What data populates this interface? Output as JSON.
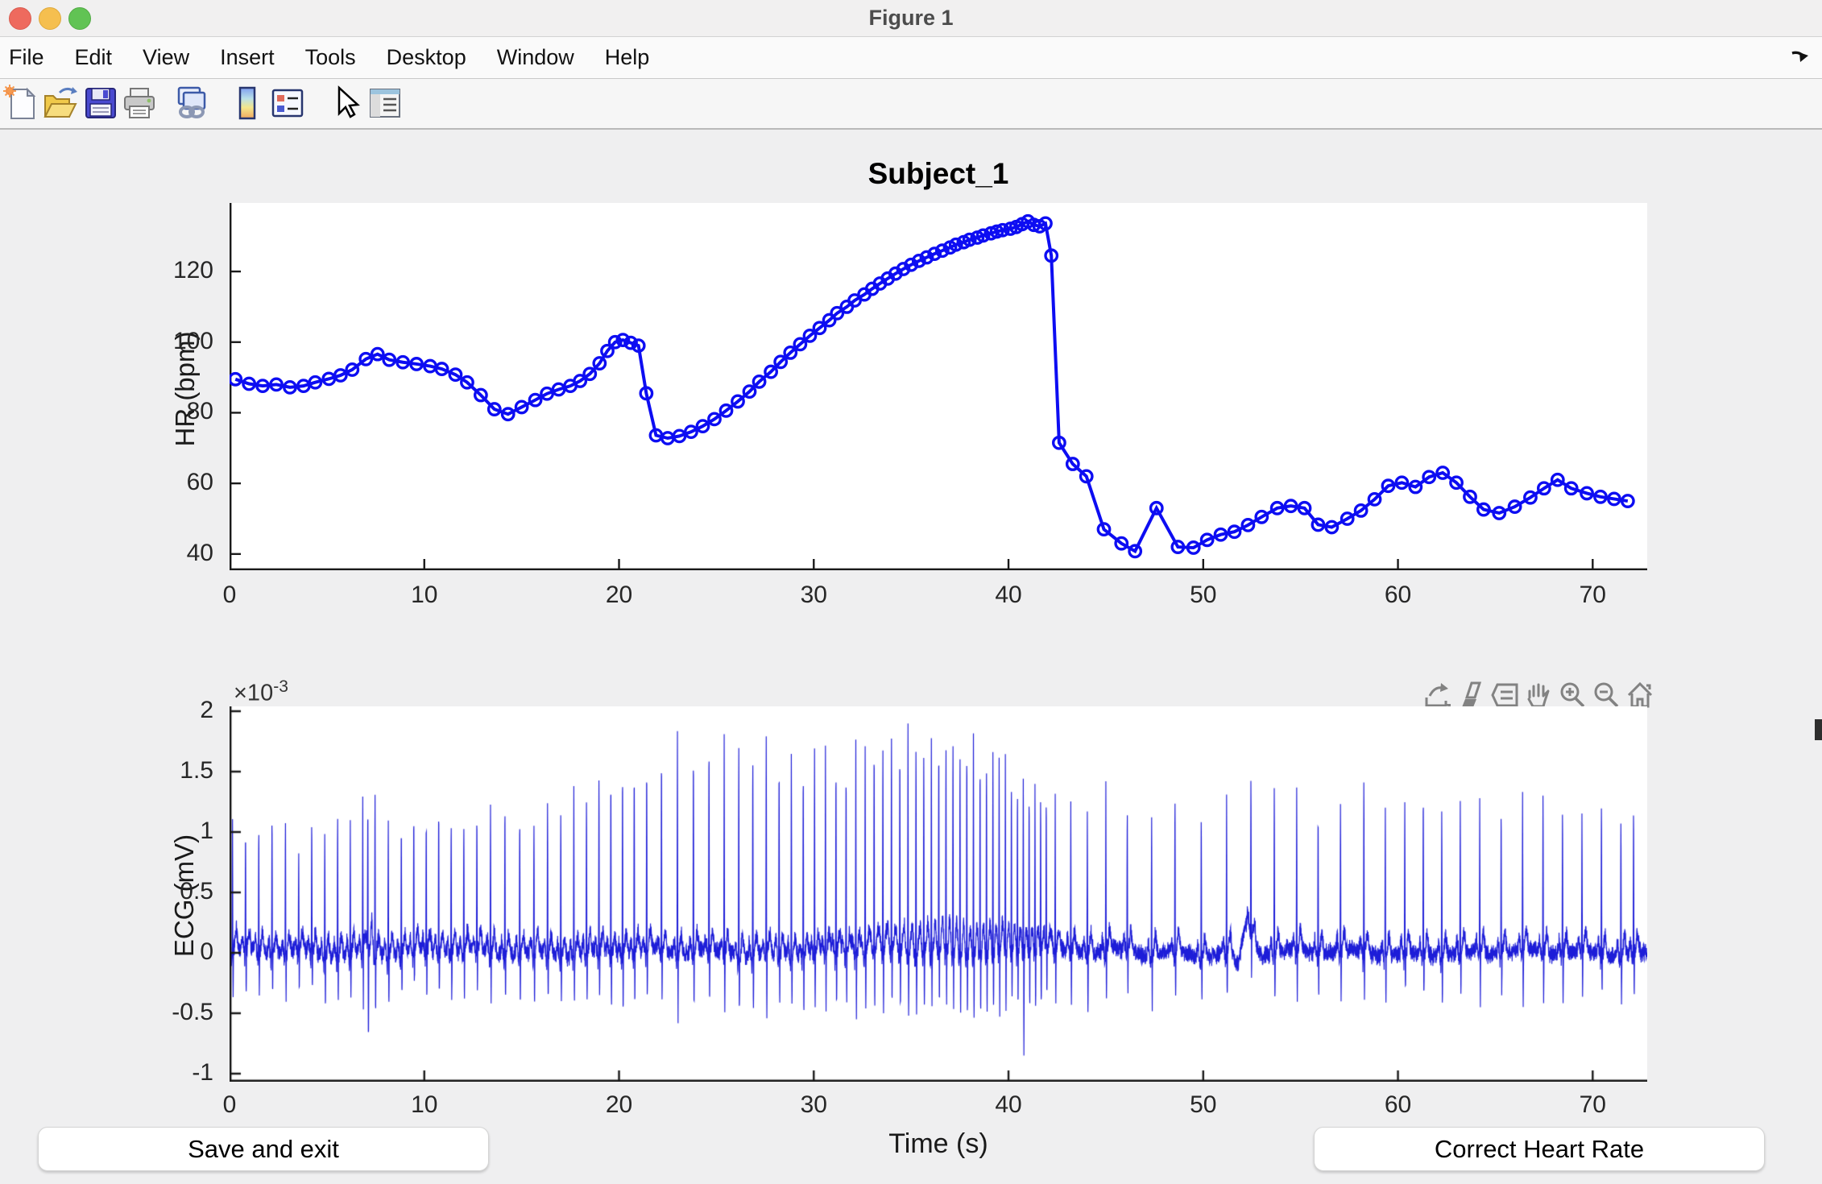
{
  "window": {
    "title": "Figure 1"
  },
  "menu_bar": {
    "items": [
      "File",
      "Edit",
      "View",
      "Insert",
      "Tools",
      "Desktop",
      "Window",
      "Help"
    ]
  },
  "toolbar": {
    "icons": [
      "new-figure",
      "open-file",
      "save-figure",
      "print-figure",
      "link-plot",
      "insert-colorbar",
      "insert-legend",
      "edit-plot",
      "property-inspector"
    ]
  },
  "axes_toolbar": {
    "icons": [
      "export",
      "brush-data",
      "datatips",
      "pan",
      "zoom-in",
      "zoom-out",
      "restore-view"
    ]
  },
  "buttons": {
    "save_and_exit": "Save and exit",
    "correct_heart_rate": "Correct Heart Rate"
  },
  "exponent_label": {
    "base": "×10",
    "exponent": "-3"
  },
  "accent_colors": {
    "plot_blue": "#0d0df2",
    "traffic_red": "#ee6a5e",
    "traffic_yellow": "#f5bf4f",
    "traffic_green": "#61c354"
  },
  "chart_data": [
    {
      "type": "line",
      "title": "Subject_1",
      "xlabel": "",
      "ylabel": "HR (bpm)",
      "marker": "circle",
      "color": "#0d0df2",
      "xlim": [
        0,
        72.8
      ],
      "ylim": [
        35.4,
        139.4
      ],
      "xticks": [
        0,
        10,
        20,
        30,
        40,
        50,
        60,
        70
      ],
      "yticks": [
        40,
        60,
        80,
        100,
        120
      ],
      "x": [
        0.3,
        1.0,
        1.7,
        2.4,
        3.1,
        3.8,
        4.4,
        5.1,
        5.7,
        6.3,
        7.0,
        7.6,
        8.2,
        8.9,
        9.6,
        10.3,
        10.9,
        11.6,
        12.2,
        12.9,
        13.6,
        14.3,
        15.0,
        15.7,
        16.3,
        16.9,
        17.5,
        18.0,
        18.5,
        19.0,
        19.4,
        19.8,
        20.2,
        20.6,
        21.0,
        21.4,
        21.9,
        22.5,
        23.1,
        23.7,
        24.3,
        24.9,
        25.5,
        26.1,
        26.7,
        27.2,
        27.8,
        28.3,
        28.8,
        29.3,
        29.8,
        30.3,
        30.8,
        31.2,
        31.7,
        32.1,
        32.6,
        33.0,
        33.4,
        33.8,
        34.2,
        34.6,
        35.0,
        35.4,
        35.8,
        36.2,
        36.6,
        37.0,
        37.3,
        37.7,
        38.0,
        38.4,
        38.7,
        39.1,
        39.4,
        39.7,
        40.1,
        40.4,
        40.7,
        41.0,
        41.3,
        41.6,
        41.9,
        42.2,
        42.6,
        43.3,
        44.0,
        44.9,
        45.8,
        46.5,
        47.6,
        48.7,
        49.5,
        50.2,
        50.9,
        51.6,
        52.3,
        53.0,
        53.8,
        54.5,
        55.2,
        55.9,
        56.6,
        57.4,
        58.1,
        58.8,
        59.5,
        60.2,
        60.9,
        61.6,
        62.3,
        63.0,
        63.7,
        64.4,
        65.2,
        66.0,
        66.8,
        67.5,
        68.2,
        68.9,
        69.7,
        70.4,
        71.1,
        71.8
      ],
      "y": [
        89.5,
        88.2,
        87.6,
        88.0,
        87.2,
        87.6,
        88.6,
        89.6,
        90.6,
        92.2,
        95.2,
        96.6,
        95.0,
        94.3,
        93.8,
        93.2,
        92.4,
        90.8,
        88.6,
        85.0,
        81.0,
        79.6,
        81.6,
        83.6,
        85.4,
        86.6,
        87.6,
        89.0,
        91.0,
        94.0,
        97.5,
        100.0,
        100.6,
        99.8,
        99.0,
        85.5,
        73.6,
        72.8,
        73.4,
        74.6,
        76.2,
        78.2,
        80.6,
        83.2,
        86.0,
        88.8,
        91.6,
        94.4,
        97.0,
        99.4,
        101.8,
        104.0,
        106.2,
        108.2,
        110.0,
        111.8,
        113.5,
        115.1,
        116.6,
        118.0,
        119.4,
        120.7,
        121.9,
        123.0,
        124.0,
        125.0,
        125.9,
        126.8,
        127.6,
        128.3,
        129.0,
        129.6,
        130.2,
        130.8,
        131.3,
        131.7,
        132.1,
        132.6,
        133.4,
        134.2,
        133.2,
        132.8,
        133.6,
        124.5,
        71.5,
        65.5,
        62.0,
        47.0,
        43.0,
        40.8,
        53.0,
        42.0,
        41.8,
        44.0,
        45.5,
        46.3,
        48.2,
        50.5,
        53.0,
        53.6,
        53.0,
        48.3,
        47.6,
        50.0,
        52.3,
        55.5,
        59.3,
        60.2,
        59.0,
        61.8,
        63.0,
        60.2,
        56.2,
        52.6,
        51.6,
        53.4,
        56.0,
        58.6,
        61.0,
        58.6,
        57.2,
        56.2,
        55.6,
        55.0
      ]
    },
    {
      "type": "line",
      "title": "",
      "xlabel": "Time (s)",
      "ylabel": "ECG (mV)",
      "y_unit_multiplier": "1e-3",
      "color": "#1d1dd8",
      "xlim": [
        0,
        72.8
      ],
      "ylim": [
        -1.067,
        2.04
      ],
      "xticks": [
        0,
        10,
        20,
        30,
        40,
        50,
        60,
        70
      ],
      "yticks": [
        -1,
        -0.5,
        0,
        0.5,
        1,
        1.5,
        2
      ],
      "baseline_noise_amplitude": 0.08,
      "baseline_wander_bump": {
        "t": 52.3,
        "amp": 0.25
      },
      "r_peaks": [
        [
          0.15,
          1.18,
          -0.42
        ],
        [
          0.82,
          1.06,
          -0.38
        ],
        [
          1.5,
          1.12,
          -0.4
        ],
        [
          2.18,
          1.25,
          -0.36
        ],
        [
          2.87,
          1.18,
          -0.42
        ],
        [
          3.55,
          0.92,
          -0.35
        ],
        [
          4.22,
          1.22,
          -0.4
        ],
        [
          4.89,
          1.1,
          -0.44
        ],
        [
          5.55,
          1.3,
          -0.38
        ],
        [
          6.2,
          1.15,
          -0.4
        ],
        [
          6.84,
          1.24,
          -0.42
        ],
        [
          7.1,
          1.32,
          -0.85
        ],
        [
          7.47,
          1.38,
          -0.5
        ],
        [
          8.15,
          1.22,
          -0.4
        ],
        [
          8.82,
          1.12,
          -0.44
        ],
        [
          9.46,
          1.28,
          -0.38
        ],
        [
          10.1,
          1.18,
          -0.42
        ],
        [
          10.74,
          1.32,
          -0.4
        ],
        [
          11.38,
          1.22,
          -0.44
        ],
        [
          12.03,
          1.15,
          -0.4
        ],
        [
          12.7,
          1.28,
          -0.38
        ],
        [
          13.4,
          1.2,
          -0.42
        ],
        [
          14.14,
          1.34,
          -0.4
        ],
        [
          14.9,
          1.26,
          -0.44
        ],
        [
          15.63,
          1.18,
          -0.4
        ],
        [
          16.33,
          1.3,
          -0.42
        ],
        [
          17.01,
          1.24,
          -0.38
        ],
        [
          17.68,
          1.35,
          -0.44
        ],
        [
          18.33,
          1.42,
          -0.42
        ],
        [
          18.97,
          1.5,
          -0.46
        ],
        [
          19.58,
          1.58,
          -0.44
        ],
        [
          20.18,
          1.66,
          -0.48
        ],
        [
          20.78,
          1.72,
          -0.46
        ],
        [
          21.42,
          1.76,
          -0.5
        ],
        [
          22.18,
          1.8,
          -0.48
        ],
        [
          23.0,
          1.84,
          -0.52
        ],
        [
          23.82,
          1.82,
          -0.5
        ],
        [
          24.62,
          1.85,
          -0.52
        ],
        [
          25.4,
          1.8,
          -0.5
        ],
        [
          26.15,
          1.83,
          -0.52
        ],
        [
          26.87,
          1.78,
          -0.48
        ],
        [
          27.56,
          1.84,
          -0.52
        ],
        [
          28.22,
          1.8,
          -0.5
        ],
        [
          28.85,
          1.76,
          -0.48
        ],
        [
          29.46,
          1.7,
          -0.5
        ],
        [
          30.04,
          1.74,
          -0.48
        ],
        [
          30.6,
          1.68,
          -0.5
        ],
        [
          31.14,
          1.72,
          -0.48
        ],
        [
          31.66,
          1.66,
          -0.46
        ],
        [
          32.16,
          1.7,
          -0.5
        ],
        [
          32.64,
          1.74,
          -0.48
        ],
        [
          33.1,
          1.78,
          -0.5
        ],
        [
          33.55,
          1.82,
          -0.52
        ],
        [
          33.99,
          1.85,
          -0.5
        ],
        [
          34.42,
          1.8,
          -0.52
        ],
        [
          34.84,
          1.84,
          -0.5
        ],
        [
          35.25,
          1.86,
          -0.52
        ],
        [
          35.65,
          1.82,
          -0.5
        ],
        [
          36.04,
          1.78,
          -0.48
        ],
        [
          36.42,
          1.84,
          -0.52
        ],
        [
          36.79,
          1.8,
          -0.5
        ],
        [
          37.15,
          1.86,
          -0.52
        ],
        [
          37.51,
          1.83,
          -0.5
        ],
        [
          37.86,
          1.86,
          -0.48
        ],
        [
          38.2,
          1.8,
          -0.52
        ],
        [
          38.54,
          1.76,
          -0.5
        ],
        [
          38.87,
          1.72,
          -0.48
        ],
        [
          39.2,
          1.68,
          -0.5
        ],
        [
          39.52,
          1.62,
          -0.48
        ],
        [
          39.84,
          1.56,
          -0.46
        ],
        [
          40.15,
          1.5,
          -0.44
        ],
        [
          40.46,
          1.46,
          -0.48
        ],
        [
          40.76,
          1.42,
          -0.82
        ],
        [
          41.06,
          1.45,
          -0.46
        ],
        [
          41.36,
          1.4,
          -0.44
        ],
        [
          41.65,
          1.38,
          -0.42
        ],
        [
          41.94,
          1.36,
          -0.44
        ],
        [
          42.4,
          1.3,
          -0.42
        ],
        [
          43.2,
          1.24,
          -0.4
        ],
        [
          44.05,
          1.2,
          -0.58
        ],
        [
          45.0,
          1.34,
          -0.42
        ],
        [
          46.1,
          1.3,
          -0.4
        ],
        [
          47.35,
          1.24,
          -0.44
        ],
        [
          48.55,
          1.36,
          -0.42
        ],
        [
          49.9,
          1.28,
          -0.4
        ],
        [
          51.2,
          1.25,
          -0.42
        ],
        [
          52.45,
          1.32,
          -0.4
        ],
        [
          53.65,
          1.52,
          -0.44
        ],
        [
          54.8,
          1.3,
          -0.42
        ],
        [
          55.9,
          1.26,
          -0.4
        ],
        [
          57.05,
          1.34,
          -0.42
        ],
        [
          58.25,
          1.55,
          -0.44
        ],
        [
          59.35,
          1.3,
          -0.42
        ],
        [
          60.35,
          1.38,
          -0.4
        ],
        [
          61.3,
          1.45,
          -0.44
        ],
        [
          62.25,
          1.32,
          -0.42
        ],
        [
          63.2,
          1.28,
          -0.4
        ],
        [
          64.2,
          1.25,
          -0.42
        ],
        [
          65.3,
          1.3,
          -0.4
        ],
        [
          66.4,
          1.36,
          -0.44
        ],
        [
          67.45,
          1.42,
          -0.42
        ],
        [
          68.45,
          1.3,
          -0.4
        ],
        [
          69.45,
          1.26,
          -0.42
        ],
        [
          70.45,
          1.32,
          -0.4
        ],
        [
          71.45,
          1.28,
          -0.42
        ],
        [
          72.1,
          1.3,
          -0.4
        ]
      ]
    }
  ]
}
